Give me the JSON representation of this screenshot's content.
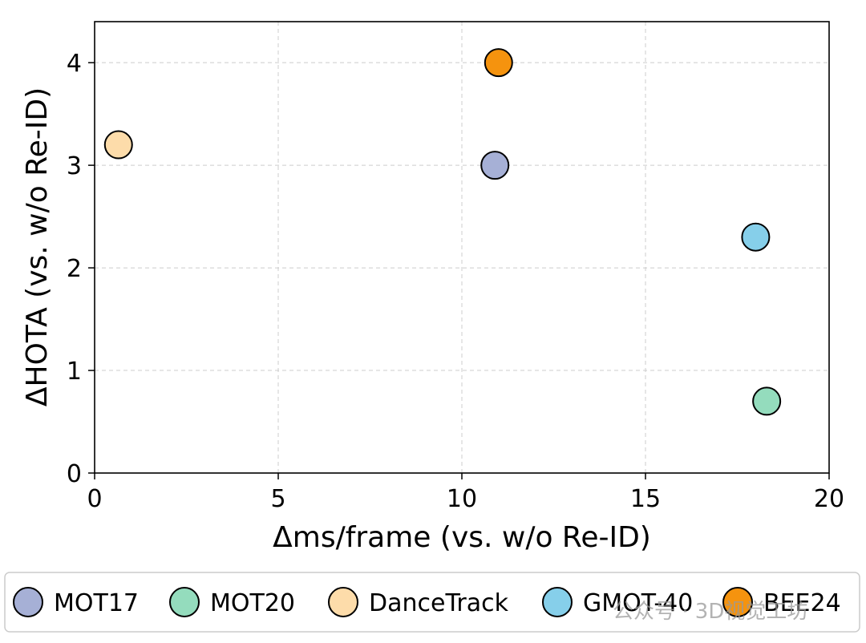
{
  "chart_data": {
    "type": "scatter",
    "title": "",
    "xlabel": "Δms/frame (vs. w/o Re-ID)",
    "ylabel": "ΔHOTA (vs. w/o Re-ID)",
    "xlim": [
      0,
      20
    ],
    "ylim": [
      0,
      4.4
    ],
    "xticks": [
      0,
      5,
      10,
      15,
      20
    ],
    "yticks": [
      0,
      1,
      2,
      3,
      4
    ],
    "grid": true,
    "legend_position": "bottom",
    "series": [
      {
        "name": "MOT17",
        "x": 10.9,
        "y": 3.0,
        "color": "#a6b0d6"
      },
      {
        "name": "MOT20",
        "x": 18.3,
        "y": 0.7,
        "color": "#94dcbd"
      },
      {
        "name": "DanceTrack",
        "x": 0.65,
        "y": 3.2,
        "color": "#fddcaa"
      },
      {
        "name": "GMOT-40",
        "x": 18.0,
        "y": 2.3,
        "color": "#86cfea"
      },
      {
        "name": "BEE24",
        "x": 11.0,
        "y": 4.0,
        "color": "#f5930e"
      }
    ]
  },
  "watermark": {
    "text": "公众号 · 3D视觉工坊"
  }
}
